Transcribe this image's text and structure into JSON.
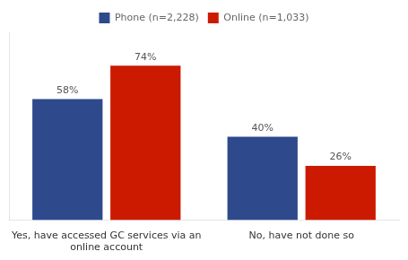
{
  "chart_data": {
    "type": "bar",
    "categories": [
      "Yes, have accessed GC services via an\nonline account",
      "No, have not done so"
    ],
    "series": [
      {
        "name": "Phone (n=2,228)",
        "color": "#2E4A8C",
        "values": [
          58,
          40
        ],
        "value_labels": [
          "58%",
          "40%"
        ]
      },
      {
        "name": "Online (n=1,033)",
        "color": "#CC1A00",
        "values": [
          74,
          26
        ],
        "value_labels": [
          "74%",
          "26%"
        ]
      }
    ],
    "ylim": [
      0,
      90
    ],
    "tick_labels": "x",
    "grid": false,
    "legend": "top",
    "data_labels": true
  }
}
